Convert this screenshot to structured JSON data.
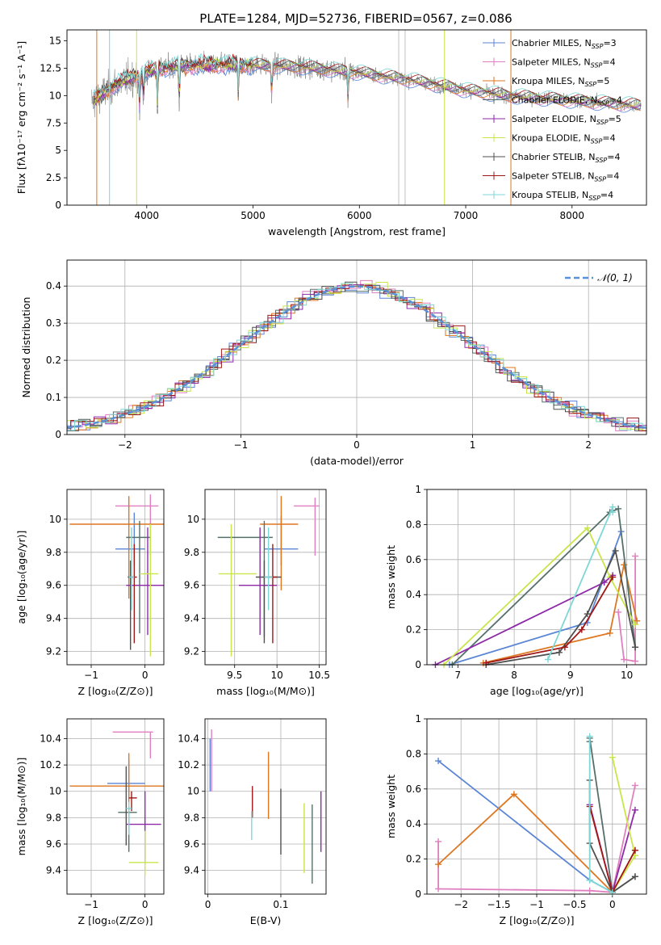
{
  "figure": {
    "title": "PLATE=1284, MJD=52736, FIBERID=0567, z=0.086"
  },
  "colors": {
    "CM": "#5b86d6",
    "SM": "#e07fbf",
    "KM": "#dd7722",
    "CE": "#55706a",
    "SE": "#8e2aa8",
    "KE": "#c8e64a",
    "CS": "#505050",
    "SS": "#a01818",
    "KS": "#7ed7d7",
    "gauss": "#5b8fd6",
    "grid": "#b0b0b0",
    "grey": "#c0c0c0"
  },
  "chart_data": [
    {
      "id": "spectrum",
      "type": "line",
      "xlabel": "wavelength [Angstrom, rest frame]",
      "ylabel": "Flux [fλ10⁻¹⁷ erg cm⁻² s⁻¹ A⁻¹]",
      "xlim": [
        3250,
        8700
      ],
      "ylim": [
        0,
        16
      ],
      "xticks": [
        4000,
        5000,
        6000,
        7000,
        8000
      ],
      "yticks": [
        0.0,
        2.5,
        5.0,
        7.5,
        10.0,
        12.5,
        15.0
      ],
      "grid": false,
      "legend_placement": "top-right",
      "legend": [
        {
          "key": "CM",
          "label": "Chabrier MILES, N",
          "sub": "SSP",
          "eq": "=3"
        },
        {
          "key": "SM",
          "label": "Salpeter MILES, N",
          "sub": "SSP",
          "eq": "=4"
        },
        {
          "key": "KM",
          "label": "Kroupa MILES, N",
          "sub": "SSP",
          "eq": "=5"
        },
        {
          "key": "CE",
          "label": "Chabrier ELODIE, N",
          "sub": "SSP",
          "eq": "=4"
        },
        {
          "key": "SE",
          "label": "Salpeter ELODIE, N",
          "sub": "SSP",
          "eq": "=5"
        },
        {
          "key": "KE",
          "label": "Kroupa ELODIE, N",
          "sub": "SSP",
          "eq": "=4"
        },
        {
          "key": "CS",
          "label": "Chabrier STELIB, N",
          "sub": "SSP",
          "eq": "=4"
        },
        {
          "key": "SS",
          "label": "Salpeter STELIB, N",
          "sub": "SSP",
          "eq": "=4"
        },
        {
          "key": "KS",
          "label": "Kroupa STELIB, N",
          "sub": "SSP",
          "eq": "=4"
        }
      ],
      "continuum": [
        [
          3500,
          9.5
        ],
        [
          3700,
          11.0
        ],
        [
          4000,
          12.2
        ],
        [
          4200,
          12.6
        ],
        [
          4500,
          12.8
        ],
        [
          5000,
          12.8
        ],
        [
          5500,
          12.6
        ],
        [
          6000,
          12.1
        ],
        [
          6500,
          11.4
        ],
        [
          7000,
          10.5
        ],
        [
          7400,
          10.0
        ],
        [
          7800,
          9.7
        ],
        [
          8200,
          9.4
        ],
        [
          8650,
          9.1
        ]
      ],
      "data_range": [
        3480,
        6800
      ],
      "model_range": [
        3500,
        8650
      ],
      "absorption": [
        [
          3934,
          3.5
        ],
        [
          3969,
          3.0
        ],
        [
          4101,
          4.0
        ],
        [
          4305,
          4.0
        ],
        [
          4861,
          3.5
        ],
        [
          5175,
          3.0
        ],
        [
          5893,
          3.0
        ]
      ],
      "dropouts": [
        {
          "key": "KM",
          "x": 3530
        },
        {
          "key": "KS",
          "x": 3650
        },
        {
          "key": "KE",
          "x": 3905
        },
        {
          "key": "KE",
          "x": 6800
        },
        {
          "key": "KM",
          "x": 7425
        },
        {
          "key": "grey",
          "x": 6370
        },
        {
          "key": "grey",
          "x": 6430
        }
      ]
    },
    {
      "id": "residuals",
      "type": "area",
      "xlabel": "(data-model)/error",
      "ylabel": "Normed distribution",
      "xlim": [
        -2.5,
        2.5
      ],
      "ylim": [
        0,
        0.47
      ],
      "xticks": [
        -2,
        -1,
        0,
        1,
        2
      ],
      "yticks": [
        0.0,
        0.1,
        0.2,
        0.3,
        0.4
      ],
      "grid": true,
      "bin_width": 0.1,
      "gauss_label": "𝒩(0, 1)",
      "legend_placement": "top-right"
    },
    {
      "id": "age_vs_Z",
      "type": "scatter",
      "xlabel": "Z [log₁₀(Z/Z⊙)]",
      "ylabel": "age  [log₁₀(age/yr)]",
      "xlim": [
        -1.45,
        0.35
      ],
      "ylim": [
        9.12,
        10.18
      ],
      "xticks": [
        -1,
        0
      ],
      "yticks": [
        9.2,
        9.4,
        9.6,
        9.8,
        10.0
      ],
      "grid": true,
      "points": [
        {
          "key": "CM",
          "x": -0.2,
          "xerr": [
            0.35,
            0.2
          ],
          "y": 9.82,
          "yerr": [
            0.1,
            0.22
          ]
        },
        {
          "key": "SM",
          "x": 0.1,
          "xerr": [
            0.65,
            0.15
          ],
          "y": 10.08,
          "yerr": [
            0.3,
            0.07
          ]
        },
        {
          "key": "KM",
          "x": -0.3,
          "xerr": [
            1.1,
            0.65
          ],
          "y": 9.97,
          "yerr": [
            0.45,
            0.17
          ]
        },
        {
          "key": "CE",
          "x": -0.1,
          "xerr": [
            0.25,
            0.2
          ],
          "y": 9.89,
          "yerr": [
            0.58,
            0.1
          ]
        },
        {
          "key": "SE",
          "x": 0.05,
          "xerr": [
            0.4,
            0.3
          ],
          "y": 9.6,
          "yerr": [
            0.3,
            0.35
          ]
        },
        {
          "key": "KE",
          "x": 0.1,
          "xerr": [
            0.2,
            0.15
          ],
          "y": 9.67,
          "yerr": [
            0.5,
            0.3
          ]
        },
        {
          "key": "CS",
          "x": -0.27,
          "xerr": [
            0.05,
            0.05
          ],
          "y": 9.65,
          "yerr": [
            0.44,
            0.1
          ]
        },
        {
          "key": "SS",
          "x": -0.2,
          "xerr": [
            0.05,
            0.05
          ],
          "y": 9.65,
          "yerr": [
            0.4,
            0.2
          ]
        },
        {
          "key": "KS",
          "x": -0.25,
          "xerr": [
            0.05,
            0.05
          ],
          "y": 9.65,
          "yerr": [
            0.2,
            0.3
          ]
        }
      ]
    },
    {
      "id": "age_vs_mass",
      "type": "scatter",
      "xlabel": "mass [log₁₀(M/M⊙)]",
      "ylabel": "",
      "xlim": [
        9.15,
        10.58
      ],
      "ylim": [
        9.12,
        10.18
      ],
      "xticks": [
        9.5,
        10.0,
        10.5
      ],
      "yticks": [
        9.2,
        9.4,
        9.6,
        9.8,
        10.0
      ],
      "grid": true,
      "points": [
        {
          "key": "CM",
          "x": 10.05,
          "xerr": [
            0.2,
            0.2
          ],
          "y": 9.82,
          "yerr": [
            0.1,
            0.2
          ]
        },
        {
          "key": "SM",
          "x": 10.45,
          "xerr": [
            0.25,
            0.05
          ],
          "y": 10.08,
          "yerr": [
            0.3,
            0.05
          ]
        },
        {
          "key": "KM",
          "x": 10.05,
          "xerr": [
            0.25,
            0.2
          ],
          "y": 9.97,
          "yerr": [
            0.4,
            0.17
          ]
        },
        {
          "key": "CE",
          "x": 9.85,
          "xerr": [
            0.55,
            0.1
          ],
          "y": 9.89,
          "yerr": [
            0.6,
            0.1
          ]
        },
        {
          "key": "SE",
          "x": 9.8,
          "xerr": [
            0.25,
            0.2
          ],
          "y": 9.6,
          "yerr": [
            0.3,
            0.35
          ]
        },
        {
          "key": "KE",
          "x": 9.46,
          "xerr": [
            0.15,
            0.3
          ],
          "y": 9.67,
          "yerr": [
            0.5,
            0.3
          ]
        },
        {
          "key": "CS",
          "x": 9.85,
          "xerr": [
            0.1,
            0.2
          ],
          "y": 9.65,
          "yerr": [
            0.4,
            0.1
          ]
        },
        {
          "key": "SS",
          "x": 9.95,
          "xerr": [
            0.05,
            0.05
          ],
          "y": 9.65,
          "yerr": [
            0.4,
            0.2
          ]
        },
        {
          "key": "KS",
          "x": 9.9,
          "xerr": [
            0.05,
            0.05
          ],
          "y": 9.65,
          "yerr": [
            0.2,
            0.3
          ]
        }
      ]
    },
    {
      "id": "weight_vs_age",
      "type": "line",
      "xlabel": "age  [log₁₀(age/yr)]",
      "ylabel": "mass weight",
      "xlim": [
        6.45,
        10.35
      ],
      "ylim": [
        0,
        1.0
      ],
      "xticks": [
        7,
        8,
        9,
        10
      ],
      "yticks": [
        0.0,
        0.2,
        0.4,
        0.6,
        0.8,
        1.0
      ],
      "grid": true,
      "series": [
        {
          "key": "CM",
          "x": [
            6.85,
            9.3,
            9.9
          ],
          "y": [
            0.0,
            0.24,
            0.76
          ]
        },
        {
          "key": "SM",
          "x": [
            9.85,
            9.95,
            10.15,
            10.15
          ],
          "y": [
            0.3,
            0.03,
            0.02,
            0.62
          ]
        },
        {
          "key": "KM",
          "x": [
            7.45,
            9.7,
            9.95,
            10.18
          ],
          "y": [
            0.01,
            0.18,
            0.57,
            0.25
          ]
        },
        {
          "key": "CE",
          "x": [
            6.9,
            9.7,
            9.85,
            10.15
          ],
          "y": [
            0.0,
            0.87,
            0.89,
            0.1
          ]
        },
        {
          "key": "SE",
          "x": [
            6.6,
            9.6,
            9.75
          ],
          "y": [
            0.0,
            0.47,
            0.51
          ]
        },
        {
          "key": "KE",
          "x": [
            6.75,
            9.3,
            9.7,
            10.15
          ],
          "y": [
            0.0,
            0.78,
            0.5,
            0.23
          ]
        },
        {
          "key": "CS",
          "x": [
            7.5,
            8.8,
            9.3,
            9.8,
            10.15
          ],
          "y": [
            0.0,
            0.07,
            0.29,
            0.65,
            0.1
          ]
        },
        {
          "key": "SS",
          "x": [
            7.5,
            8.9,
            9.2,
            9.75
          ],
          "y": [
            0.01,
            0.1,
            0.2,
            0.5
          ]
        },
        {
          "key": "KS",
          "x": [
            8.6,
            9.75,
            9.75
          ],
          "y": [
            0.03,
            0.9,
            0.87
          ]
        }
      ]
    },
    {
      "id": "mass_vs_Z",
      "type": "scatter",
      "xlabel": "Z [log₁₀(Z/Z⊙)]",
      "ylabel": "mass [log₁₀(M/M⊙)]",
      "xlim": [
        -1.45,
        0.35
      ],
      "ylim": [
        9.22,
        10.55
      ],
      "xticks": [
        -1,
        0
      ],
      "yticks": [
        9.4,
        9.6,
        9.8,
        10.0,
        10.2,
        10.4
      ],
      "grid": true,
      "points": [
        {
          "key": "CM",
          "x": -0.3,
          "xerr": [
            0.4,
            0.3
          ],
          "y": 10.06,
          "yerr": [
            0.1,
            0.18
          ]
        },
        {
          "key": "SM",
          "x": 0.1,
          "xerr": [
            0.7,
            0.05
          ],
          "y": 10.45,
          "yerr": [
            0.2,
            0.0
          ]
        },
        {
          "key": "KM",
          "x": -0.3,
          "xerr": [
            1.1,
            0.65
          ],
          "y": 10.04,
          "yerr": [
            0.14,
            0.25
          ]
        },
        {
          "key": "CE",
          "x": -0.3,
          "xerr": [
            0.2,
            0.15
          ],
          "y": 9.84,
          "yerr": [
            0.3,
            0.05
          ]
        },
        {
          "key": "SE",
          "x": 0.0,
          "xerr": [
            0.35,
            0.3
          ],
          "y": 9.75,
          "yerr": [
            0.3,
            0.25
          ]
        },
        {
          "key": "KE",
          "x": 0.0,
          "xerr": [
            0.3,
            0.25
          ],
          "y": 9.46,
          "yerr": [
            0.1,
            0.24
          ]
        },
        {
          "key": "CS",
          "x": -0.35,
          "xerr": [
            0.0,
            0.0
          ],
          "y": 9.79,
          "yerr": [
            0.2,
            0.4
          ]
        },
        {
          "key": "SS",
          "x": -0.25,
          "xerr": [
            0.05,
            0.1
          ],
          "y": 9.95,
          "yerr": [
            0.1,
            0.05
          ]
        },
        {
          "key": "KS",
          "x": -0.3,
          "xerr": [
            0.05,
            0.05
          ],
          "y": 9.87,
          "yerr": [
            0.2,
            0.05
          ]
        }
      ]
    },
    {
      "id": "mass_vs_ebv",
      "type": "scatter",
      "xlabel": "E(B-V)",
      "ylabel": "",
      "xlim": [
        -0.004,
        0.162
      ],
      "ylim": [
        9.22,
        10.55
      ],
      "xticks": [
        0.0,
        0.1
      ],
      "yticks": [
        9.4,
        9.6,
        9.8,
        10.0,
        10.2,
        10.4
      ],
      "grid": true,
      "points": [
        {
          "key": "CM",
          "x": 0.003,
          "xerr": [
            0,
            0
          ],
          "y": 10.2,
          "yerr": [
            0.2,
            0.2
          ]
        },
        {
          "key": "SM",
          "x": 0.005,
          "xerr": [
            0,
            0
          ],
          "y": 10.25,
          "yerr": [
            0.25,
            0.22
          ]
        },
        {
          "key": "KM",
          "x": 0.083,
          "xerr": [
            0,
            0
          ],
          "y": 10.04,
          "yerr": [
            0.25,
            0.26
          ]
        },
        {
          "key": "CE",
          "x": 0.143,
          "xerr": [
            0,
            0
          ],
          "y": 9.6,
          "yerr": [
            0.3,
            0.3
          ]
        },
        {
          "key": "SE",
          "x": 0.155,
          "xerr": [
            0,
            0
          ],
          "y": 9.77,
          "yerr": [
            0.23,
            0.23
          ]
        },
        {
          "key": "KE",
          "x": 0.132,
          "xerr": [
            0,
            0
          ],
          "y": 9.65,
          "yerr": [
            0.27,
            0.26
          ]
        },
        {
          "key": "CS",
          "x": 0.1,
          "xerr": [
            0,
            0
          ],
          "y": 9.79,
          "yerr": [
            0.27,
            0.23
          ]
        },
        {
          "key": "SS",
          "x": 0.061,
          "xerr": [
            0,
            0
          ],
          "y": 9.9,
          "yerr": [
            0.1,
            0.14
          ]
        },
        {
          "key": "KS",
          "x": 0.06,
          "xerr": [
            0,
            0
          ],
          "y": 9.75,
          "yerr": [
            0.12,
            0.1
          ]
        }
      ]
    },
    {
      "id": "weight_vs_Z",
      "type": "line",
      "xlabel": "Z [log₁₀(Z/Z⊙)]",
      "ylabel": "mass weight",
      "xlim": [
        -2.45,
        0.45
      ],
      "ylim": [
        0,
        1.0
      ],
      "xticks": [
        -2.0,
        -1.5,
        -1.0,
        -0.5,
        0.0
      ],
      "yticks": [
        0.0,
        0.2,
        0.4,
        0.6,
        0.8,
        1.0
      ],
      "grid": true,
      "series": [
        {
          "key": "CM",
          "x": [
            -2.3,
            -0.3,
            0.0
          ],
          "y": [
            0.76,
            0.08,
            0.01
          ]
        },
        {
          "key": "SM",
          "x": [
            -2.3,
            -2.3,
            -0.3,
            0.0,
            0.3
          ],
          "y": [
            0.3,
            0.03,
            0.02,
            0.01,
            0.62
          ]
        },
        {
          "key": "KM",
          "x": [
            -2.3,
            -1.3,
            0.0,
            0.3
          ],
          "y": [
            0.17,
            0.57,
            0.01,
            0.25
          ]
        },
        {
          "key": "CE",
          "x": [
            -0.3,
            -0.3,
            0.0,
            0.3
          ],
          "y": [
            0.87,
            0.89,
            0.01,
            0.1
          ]
        },
        {
          "key": "SE",
          "x": [
            -0.3,
            0.0,
            0.3
          ],
          "y": [
            0.51,
            0.01,
            0.48
          ]
        },
        {
          "key": "KE",
          "x": [
            0.0,
            0.3,
            0.0
          ],
          "y": [
            0.78,
            0.22,
            0.01
          ]
        },
        {
          "key": "CS",
          "x": [
            -0.3,
            -0.3,
            0.0,
            0.3
          ],
          "y": [
            0.65,
            0.29,
            0.01,
            0.1
          ]
        },
        {
          "key": "SS",
          "x": [
            -0.3,
            0.0,
            0.3
          ],
          "y": [
            0.5,
            0.01,
            0.25
          ]
        },
        {
          "key": "KS",
          "x": [
            -0.3,
            -0.3,
            0.0
          ],
          "y": [
            0.9,
            0.08,
            0.01
          ]
        }
      ]
    }
  ]
}
